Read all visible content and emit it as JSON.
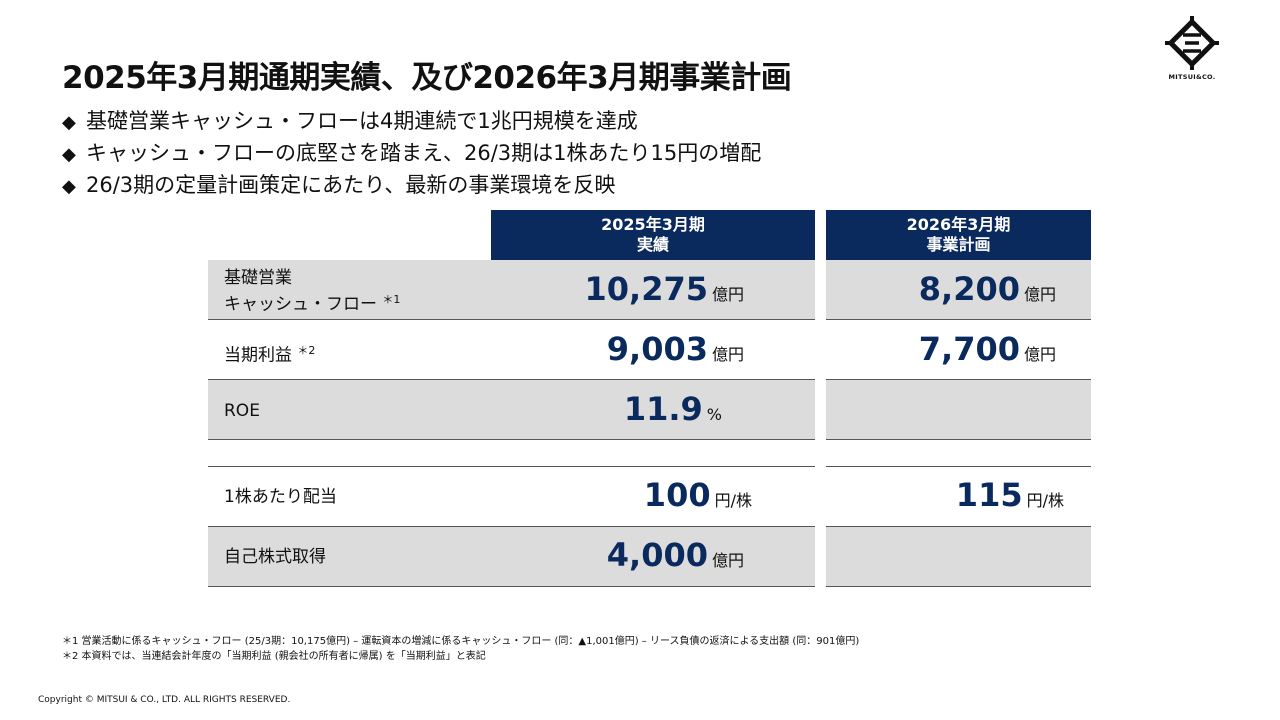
{
  "header": {
    "title": "2025年3月期通期実績、及び2026年3月期事業計画",
    "logo_text": "MITSUI&CO."
  },
  "bullets": [
    "基礎営業キャッシュ・フローは4期連続で1兆円規模を達成",
    "キャッシュ・フローの底堅さを踏まえ、26/3期は1株あたり15円の増配",
    "26/3期の定量計画策定にあたり、最新の事業環境を反映"
  ],
  "bullet_symbol": "◆",
  "table": {
    "col1": {
      "line1": "2025年3月期",
      "line2": "実績"
    },
    "col2": {
      "line1": "2026年3月期",
      "line2": "事業計画"
    },
    "rows": [
      {
        "label1": "基礎営業",
        "label2": "キャッシュ・フロー",
        "note": "＊1",
        "v1": "10,275",
        "u1": "億円",
        "v2": "8,200",
        "u2": "億円"
      },
      {
        "label1": "当期利益",
        "note": "＊2",
        "v1": "9,003",
        "u1": "億円",
        "v2": "7,700",
        "u2": "億円"
      },
      {
        "label1": "ROE",
        "v1": "11.9",
        "u1": "%"
      },
      {
        "label1": "1株あたり配当",
        "v1": "100",
        "u1": "円/株",
        "v2": "115",
        "u2": "円/株"
      },
      {
        "label1": "自己株式取得",
        "v1": "4,000",
        "u1": "億円"
      }
    ]
  },
  "footnotes": [
    "＊1 営業活動に係るキャッシュ・フロー (25/3期：10,175億円) – 運転資本の増減に係るキャッシュ・フロー (同：▲1,001億円) – リース負債の返済による支出額 (同：901億円)",
    "＊2 本資料では、当連結会計年度の「当期利益 (親会社の所有者に帰属) を「当期利益」と表記"
  ],
  "copyright": "Copyright © MITSUI & CO., LTD. ALL RIGHTS RESERVED.",
  "colors": {
    "navy": "#0a2a5e",
    "row_gray": "#dcdcdc"
  }
}
